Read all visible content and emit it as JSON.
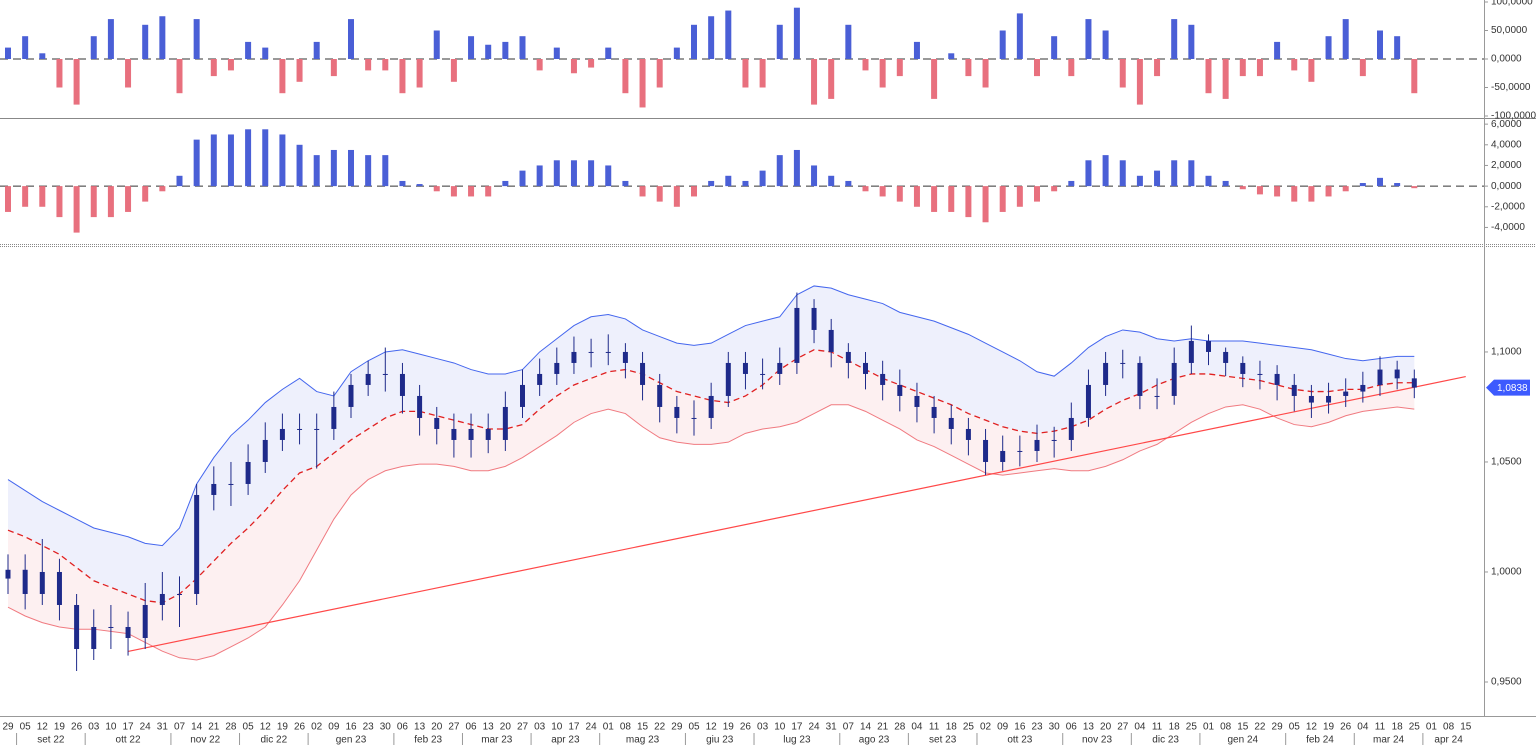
{
  "chart_data": [
    {
      "type": "bar",
      "color": "#4a5fd6",
      "negative_color": "#e8707e",
      "zero_line": true,
      "ylim": [
        -103.5,
        103.5
      ],
      "yticks": [
        {
          "value": 100,
          "label": "100,0000"
        },
        {
          "value": 50,
          "label": "50,0000"
        },
        {
          "value": 0,
          "label": "0,0000"
        },
        {
          "value": -50,
          "label": "-50,0000"
        },
        {
          "value": -100,
          "label": "-100,0000"
        }
      ],
      "values": [
        20,
        40,
        10,
        -50,
        -80,
        40,
        70,
        -50,
        60,
        75,
        -60,
        70,
        -30,
        -20,
        30,
        20,
        -60,
        -40,
        30,
        -30,
        70,
        -20,
        -20,
        -60,
        -50,
        50,
        -40,
        40,
        25,
        30,
        40,
        -20,
        20,
        -25,
        -15,
        20,
        -60,
        -85,
        -50,
        20,
        60,
        75,
        85,
        -50,
        -50,
        60,
        90,
        -80,
        -70,
        60,
        -20,
        -50,
        -30,
        30,
        -70,
        10,
        -30,
        -50,
        50,
        80,
        -30,
        40,
        -30,
        70,
        50,
        -50,
        -80,
        -30,
        70,
        60,
        -60,
        -70,
        -30,
        -30,
        30,
        -20,
        -40,
        40,
        70,
        -30,
        50,
        40,
        -60,
        null,
        null,
        null
      ]
    },
    {
      "type": "bar",
      "color": "#4a5fd6",
      "negative_color": "#e8707e",
      "zero_line": true,
      "ylim": [
        -5.7,
        6.4
      ],
      "yticks": [
        {
          "value": 6,
          "label": "6,0000"
        },
        {
          "value": 4,
          "label": "4,0000"
        },
        {
          "value": 2,
          "label": "2,0000"
        },
        {
          "value": 0,
          "label": "0,0000"
        },
        {
          "value": -2,
          "label": "-2,0000"
        },
        {
          "value": -4,
          "label": "-4,0000"
        }
      ],
      "values": [
        -2.5,
        -2,
        -2,
        -3,
        -4.5,
        -3,
        -3,
        -2.5,
        -1.5,
        -0.5,
        1,
        4.5,
        5,
        5,
        5.5,
        5.5,
        5,
        4,
        3,
        3.5,
        3.5,
        3,
        3,
        0.5,
        0.2,
        -0.5,
        -1,
        -1,
        -1,
        0.5,
        1.5,
        2,
        2.5,
        2.5,
        2.5,
        2,
        0.5,
        -1,
        -1.5,
        -2,
        -1,
        0.5,
        1,
        0.5,
        1.5,
        3,
        3.5,
        2,
        1,
        0.5,
        -0.5,
        -1,
        -1.5,
        -2,
        -2.5,
        -2.5,
        -3,
        -3.5,
        -2.5,
        -2,
        -1.5,
        -0.5,
        0.5,
        2.5,
        3,
        2.5,
        1,
        1.5,
        2.5,
        2.5,
        1,
        0.5,
        -0.3,
        -0.8,
        -1,
        -1.5,
        -1.5,
        -1,
        -0.5,
        0.3,
        0.8,
        0.3,
        -0.2,
        null,
        null,
        null
      ]
    },
    {
      "type": "candlestick",
      "color": "#1e2a8a",
      "ylim": [
        0.935,
        1.1477
      ],
      "yticks": [
        {
          "value": 0.95,
          "label": "0,9500"
        },
        {
          "value": 1,
          "label": "1,0000"
        },
        {
          "value": 1.05,
          "label": "1,0500"
        },
        {
          "value": 1.1,
          "label": "1,1000"
        }
      ],
      "categories": [
        "29",
        "05",
        "12",
        "19",
        "26",
        "03",
        "10",
        "17",
        "24",
        "31",
        "07",
        "14",
        "21",
        "28",
        "05",
        "12",
        "19",
        "26",
        "02",
        "09",
        "16",
        "23",
        "30",
        "06",
        "13",
        "20",
        "27",
        "06",
        "13",
        "20",
        "27",
        "03",
        "10",
        "17",
        "24",
        "01",
        "08",
        "15",
        "22",
        "29",
        "05",
        "12",
        "19",
        "26",
        "03",
        "10",
        "17",
        "24",
        "31",
        "07",
        "14",
        "21",
        "28",
        "04",
        "11",
        "18",
        "25",
        "02",
        "09",
        "16",
        "23",
        "30",
        "06",
        "13",
        "20",
        "27",
        "04",
        "11",
        "18",
        "25",
        "01",
        "08",
        "15",
        "22",
        "29",
        "05",
        "12",
        "19",
        "26",
        "04",
        "11",
        "18",
        "25",
        "01",
        "08",
        "15"
      ],
      "months": [
        "set 22",
        "ott 22",
        "nov 22",
        "dic 22",
        "gen 23",
        "feb 23",
        "mar 23",
        "apr 23",
        "mag 23",
        "giu 23",
        "lug 23",
        "ago 23",
        "set 23",
        "ott 23",
        "nov 23",
        "dic 23",
        "gen 24",
        "feb 24",
        "mar 24",
        "apr 24"
      ],
      "open": [
        0.997,
        1.001,
        0.99,
        1.0,
        0.985,
        0.965,
        0.975,
        0.975,
        0.97,
        0.985,
        0.99,
        0.99,
        1.035,
        1.04,
        1.04,
        1.05,
        1.06,
        1.065,
        1.065,
        1.065,
        1.075,
        1.085,
        1.09,
        1.09,
        1.08,
        1.07,
        1.065,
        1.06,
        1.065,
        1.06,
        1.075,
        1.085,
        1.09,
        1.095,
        1.1,
        1.1,
        1.1,
        1.095,
        1.085,
        1.075,
        1.07,
        1.07,
        1.08,
        1.095,
        1.09,
        1.09,
        1.095,
        1.12,
        1.11,
        1.1,
        1.095,
        1.09,
        1.085,
        1.08,
        1.075,
        1.07,
        1.065,
        1.06,
        1.05,
        1.055,
        1.055,
        1.06,
        1.06,
        1.07,
        1.085,
        1.095,
        1.095,
        1.08,
        1.08,
        1.095,
        1.105,
        1.1,
        1.095,
        1.09,
        1.09,
        1.085,
        1.08,
        1.077,
        1.08,
        1.082,
        1.085,
        1.092,
        1.088,
        null,
        null,
        null
      ],
      "high": [
        1.008,
        1.008,
        1.015,
        1.006,
        0.99,
        0.983,
        0.985,
        0.982,
        0.995,
        1.0,
        0.998,
        1.04,
        1.048,
        1.05,
        1.058,
        1.068,
        1.072,
        1.072,
        1.072,
        1.082,
        1.09,
        1.096,
        1.102,
        1.095,
        1.085,
        1.075,
        1.072,
        1.072,
        1.072,
        1.082,
        1.092,
        1.097,
        1.102,
        1.107,
        1.106,
        1.108,
        1.104,
        1.1,
        1.09,
        1.08,
        1.078,
        1.086,
        1.1,
        1.1,
        1.097,
        1.102,
        1.127,
        1.124,
        1.115,
        1.104,
        1.1,
        1.096,
        1.092,
        1.086,
        1.08,
        1.076,
        1.07,
        1.065,
        1.062,
        1.062,
        1.067,
        1.066,
        1.077,
        1.092,
        1.1,
        1.101,
        1.098,
        1.088,
        1.102,
        1.112,
        1.108,
        1.102,
        1.098,
        1.096,
        1.094,
        1.09,
        1.085,
        1.086,
        1.088,
        1.091,
        1.098,
        1.096,
        1.092,
        null,
        null,
        null
      ],
      "low": [
        0.99,
        0.983,
        0.985,
        0.978,
        0.955,
        0.96,
        0.965,
        0.962,
        0.965,
        0.978,
        0.975,
        0.985,
        1.028,
        1.03,
        1.035,
        1.045,
        1.055,
        1.058,
        1.047,
        1.06,
        1.07,
        1.08,
        1.082,
        1.072,
        1.062,
        1.058,
        1.052,
        1.052,
        1.054,
        1.055,
        1.07,
        1.08,
        1.085,
        1.09,
        1.093,
        1.094,
        1.088,
        1.078,
        1.068,
        1.063,
        1.062,
        1.065,
        1.075,
        1.083,
        1.083,
        1.085,
        1.09,
        1.104,
        1.093,
        1.088,
        1.083,
        1.078,
        1.073,
        1.068,
        1.063,
        1.058,
        1.053,
        1.044,
        1.046,
        1.048,
        1.05,
        1.052,
        1.055,
        1.066,
        1.08,
        1.088,
        1.074,
        1.074,
        1.076,
        1.09,
        1.094,
        1.089,
        1.084,
        1.083,
        1.078,
        1.073,
        1.07,
        1.072,
        1.075,
        1.077,
        1.08,
        1.083,
        1.079,
        null,
        null,
        null
      ],
      "close": [
        1.001,
        0.99,
        1.0,
        0.985,
        0.965,
        0.975,
        0.975,
        0.97,
        0.985,
        0.99,
        0.99,
        1.035,
        1.04,
        1.04,
        1.05,
        1.06,
        1.065,
        1.065,
        1.065,
        1.075,
        1.085,
        1.09,
        1.09,
        1.08,
        1.07,
        1.065,
        1.06,
        1.065,
        1.06,
        1.075,
        1.085,
        1.09,
        1.095,
        1.1,
        1.1,
        1.1,
        1.095,
        1.085,
        1.075,
        1.07,
        1.07,
        1.08,
        1.095,
        1.09,
        1.09,
        1.095,
        1.12,
        1.11,
        1.1,
        1.095,
        1.09,
        1.085,
        1.08,
        1.075,
        1.07,
        1.065,
        1.06,
        1.05,
        1.055,
        1.055,
        1.06,
        1.06,
        1.07,
        1.085,
        1.095,
        1.095,
        1.08,
        1.08,
        1.095,
        1.105,
        1.1,
        1.095,
        1.09,
        1.09,
        1.085,
        1.08,
        1.077,
        1.08,
        1.082,
        1.085,
        1.092,
        1.088,
        1.0838,
        null,
        null,
        null
      ],
      "upper": [
        1.042,
        1.037,
        1.032,
        1.028,
        1.024,
        1.02,
        1.018,
        1.016,
        1.013,
        1.012,
        1.02,
        1.04,
        1.052,
        1.062,
        1.069,
        1.077,
        1.083,
        1.088,
        1.082,
        1.08,
        1.091,
        1.096,
        1.1,
        1.101,
        1.099,
        1.097,
        1.095,
        1.092,
        1.09,
        1.09,
        1.092,
        1.1,
        1.106,
        1.112,
        1.116,
        1.117,
        1.115,
        1.11,
        1.107,
        1.104,
        1.103,
        1.104,
        1.108,
        1.112,
        1.114,
        1.116,
        1.126,
        1.13,
        1.129,
        1.126,
        1.124,
        1.122,
        1.118,
        1.116,
        1.114,
        1.111,
        1.108,
        1.104,
        1.1,
        1.096,
        1.091,
        1.089,
        1.095,
        1.102,
        1.107,
        1.11,
        1.109,
        1.106,
        1.105,
        1.106,
        1.105,
        1.105,
        1.105,
        1.104,
        1.103,
        1.102,
        1.101,
        1.099,
        1.097,
        1.096,
        1.097,
        1.098,
        1.098,
        null,
        null,
        null
      ],
      "upper_color": "#4466ee",
      "middle": [
        1.019,
        1.016,
        1.012,
        1.008,
        1.002,
        0.996,
        0.993,
        0.99,
        0.987,
        0.986,
        0.99,
        0.997,
        1.005,
        1.013,
        1.02,
        1.028,
        1.037,
        1.045,
        1.048,
        1.054,
        1.06,
        1.065,
        1.07,
        1.073,
        1.073,
        1.071,
        1.069,
        1.067,
        1.065,
        1.065,
        1.067,
        1.074,
        1.08,
        1.085,
        1.088,
        1.091,
        1.092,
        1.09,
        1.086,
        1.082,
        1.08,
        1.078,
        1.077,
        1.08,
        1.085,
        1.092,
        1.097,
        1.101,
        1.1,
        1.096,
        1.092,
        1.088,
        1.085,
        1.082,
        1.079,
        1.076,
        1.072,
        1.069,
        1.066,
        1.064,
        1.063,
        1.064,
        1.066,
        1.069,
        1.074,
        1.078,
        1.081,
        1.085,
        1.088,
        1.09,
        1.09,
        1.089,
        1.088,
        1.087,
        1.085,
        1.083,
        1.082,
        1.082,
        1.083,
        1.083,
        1.085,
        1.086,
        1.086,
        null,
        null,
        null
      ],
      "middle_color": "#e02020",
      "lower": [
        0.984,
        0.98,
        0.977,
        0.975,
        0.974,
        0.974,
        0.973,
        0.972,
        0.968,
        0.964,
        0.961,
        0.96,
        0.962,
        0.966,
        0.97,
        0.975,
        0.985,
        0.996,
        1.01,
        1.024,
        1.035,
        1.042,
        1.046,
        1.048,
        1.049,
        1.049,
        1.048,
        1.046,
        1.046,
        1.048,
        1.052,
        1.057,
        1.062,
        1.068,
        1.072,
        1.074,
        1.072,
        1.066,
        1.061,
        1.059,
        1.058,
        1.058,
        1.059,
        1.063,
        1.065,
        1.066,
        1.068,
        1.072,
        1.076,
        1.076,
        1.073,
        1.069,
        1.065,
        1.06,
        1.057,
        1.053,
        1.049,
        1.045,
        1.044,
        1.045,
        1.046,
        1.047,
        1.046,
        1.046,
        1.048,
        1.051,
        1.055,
        1.058,
        1.063,
        1.068,
        1.072,
        1.075,
        1.076,
        1.074,
        1.07,
        1.067,
        1.066,
        1.068,
        1.071,
        1.073,
        1.074,
        1.075,
        1.074,
        null,
        null,
        null
      ],
      "lower_color": "#f07a80",
      "trendline": {
        "x": [
          7,
          85
        ],
        "values": [
          0.9639,
          1.0888
        ],
        "color": "#ff4848"
      },
      "last_price": {
        "value": 1.0838,
        "label": "1,0838",
        "color": "#3d5afe"
      }
    }
  ]
}
